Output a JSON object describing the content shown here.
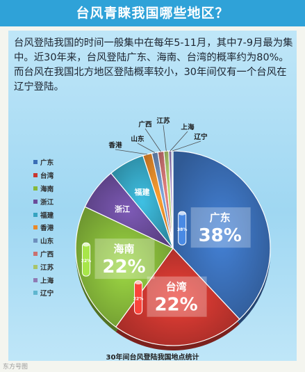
{
  "header": {
    "title": "台风青睐我国哪些地区？"
  },
  "intro": "台风登陆我国的时间一般集中在每年5-11月，其中7-9月最为集中。近30年来，台风登陆广东、海南、台湾的概率约为80%。而台风在我国北方地区登陆概率较小，30年间仅有一个台风在辽宁登陆。",
  "caption": "30年间台风登陆我国地点统计",
  "watermark": "东方号图",
  "chart_data": {
    "type": "pie",
    "title": "30年间台风登陆我国地点统计",
    "legend_position": "left",
    "slices": [
      {
        "label": "广东",
        "value": 38,
        "display": "38%",
        "color": "#3a6eb6"
      },
      {
        "label": "台湾",
        "value": 22,
        "display": "22%",
        "color": "#c8362f"
      },
      {
        "label": "海南",
        "value": 22,
        "display": "22%",
        "color": "#86b83a"
      },
      {
        "label": "浙江",
        "value": 7,
        "color": "#6a4c9a"
      },
      {
        "label": "福建",
        "value": 6,
        "color": "#35a3c0"
      },
      {
        "label": "香港",
        "value": 1.5,
        "color": "#e8892a"
      },
      {
        "label": "山东",
        "value": 1,
        "color": "#6d8fbd"
      },
      {
        "label": "广西",
        "value": 1,
        "color": "#c97170"
      },
      {
        "label": "江苏",
        "value": 0.8,
        "color": "#a8c46a"
      },
      {
        "label": "上海",
        "value": 0.5,
        "color": "#8f7ab3"
      },
      {
        "label": "辽宁",
        "value": 0.2,
        "color": "#5fb6cf"
      }
    ]
  }
}
